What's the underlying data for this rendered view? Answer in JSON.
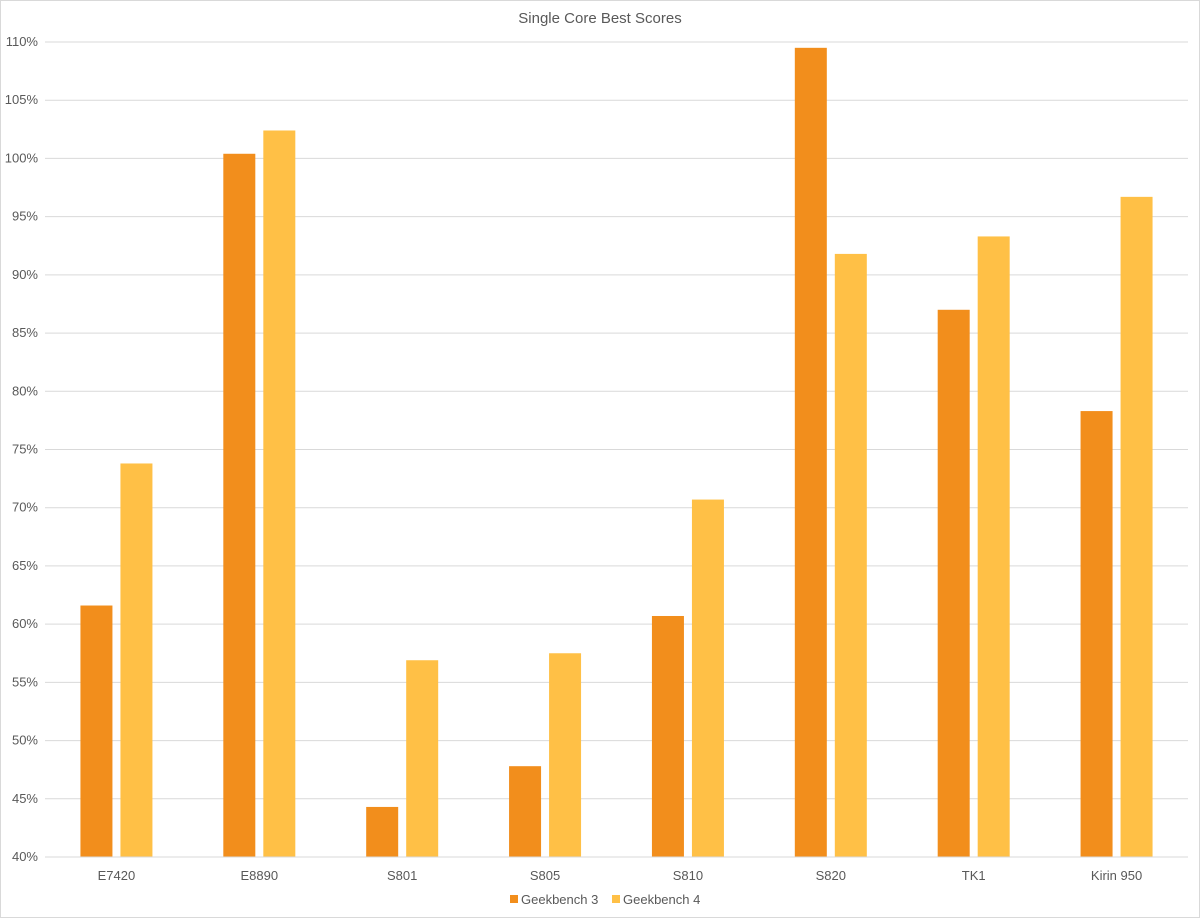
{
  "chart_data": {
    "type": "bar",
    "title": "Single Core Best Scores",
    "xlabel": "",
    "ylabel": "",
    "categories": [
      "E7420",
      "E8890",
      "S801",
      "S805",
      "S810",
      "S820",
      "TK1",
      "Kirin 950"
    ],
    "series": [
      {
        "name": "Geekbench 3",
        "color": "#F28E1C",
        "values": [
          61.6,
          100.4,
          44.3,
          47.8,
          60.7,
          109.5,
          87.0,
          78.3
        ]
      },
      {
        "name": "Geekbench 4",
        "color": "#FFC046",
        "values": [
          73.8,
          102.4,
          56.9,
          57.5,
          70.7,
          91.8,
          93.3,
          96.7
        ]
      }
    ],
    "ylim": [
      40,
      110
    ],
    "ytick_step": 5,
    "ytick_labels": [
      "40%",
      "45%",
      "50%",
      "55%",
      "60%",
      "65%",
      "70%",
      "75%",
      "80%",
      "85%",
      "90%",
      "95%",
      "100%",
      "105%",
      "110%"
    ],
    "grid": true,
    "gridline_color": "#d9d9d9",
    "legend_position": "bottom"
  }
}
